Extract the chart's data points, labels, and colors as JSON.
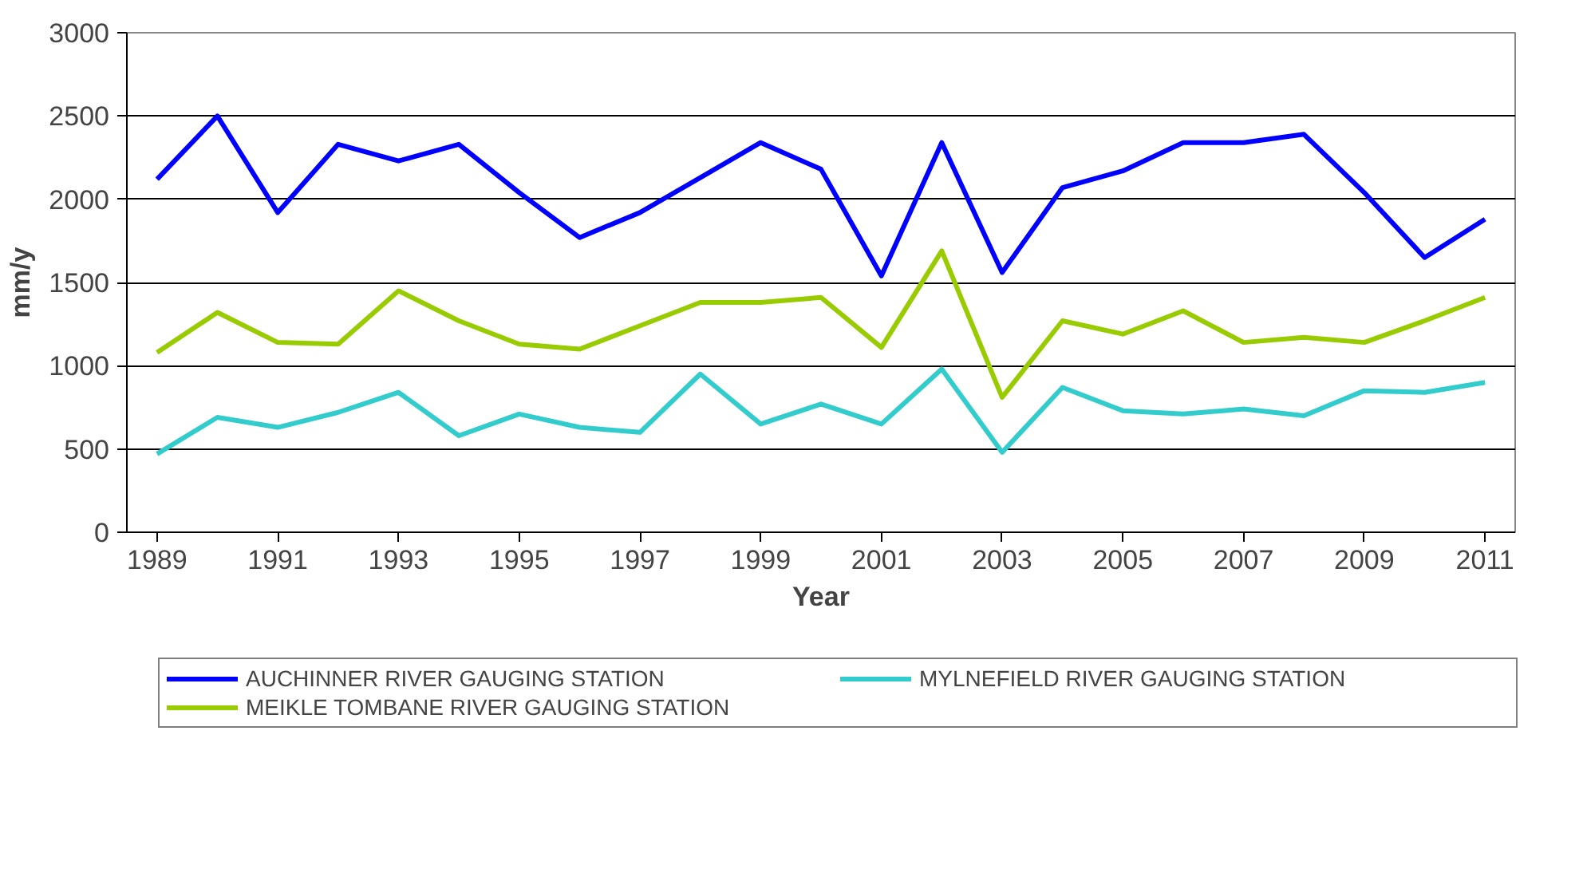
{
  "chart_data": {
    "type": "line",
    "xlabel": "Year",
    "ylabel": "mm/y",
    "x": [
      1989,
      1990,
      1991,
      1992,
      1993,
      1994,
      1995,
      1996,
      1997,
      1998,
      1999,
      2000,
      2001,
      2002,
      2003,
      2004,
      2005,
      2006,
      2007,
      2008,
      2009,
      2010,
      2011
    ],
    "xlim": [
      1988.5,
      2011.5
    ],
    "xticks": [
      1989,
      1991,
      1993,
      1995,
      1997,
      1999,
      2001,
      2003,
      2005,
      2007,
      2009,
      2011
    ],
    "ylim": [
      0,
      3000
    ],
    "yticks": [
      0,
      500,
      1000,
      1500,
      2000,
      2500,
      3000
    ],
    "grid": "y",
    "legend": "bottom",
    "series": [
      {
        "name": "AUCHINNER RIVER GAUGING STATION",
        "color": "#0000ff",
        "values": [
          2120,
          2500,
          1920,
          2330,
          2230,
          2330,
          2040,
          1770,
          1920,
          2130,
          2340,
          2180,
          1540,
          2340,
          1560,
          2070,
          2170,
          2340,
          2340,
          2390,
          2040,
          1650,
          1880
        ]
      },
      {
        "name": "MEIKLE TOMBANE RIVER GAUGING STATION",
        "color": "#99cc00",
        "values": [
          1080,
          1320,
          1140,
          1130,
          1450,
          1270,
          1130,
          1100,
          1240,
          1380,
          1380,
          1410,
          1110,
          1690,
          810,
          1270,
          1190,
          1330,
          1140,
          1170,
          1140,
          1270,
          1410
        ]
      },
      {
        "name": "MYLNEFIELD RIVER GAUGING STATION",
        "color": "#33cccc",
        "values": [
          470,
          690,
          630,
          720,
          840,
          580,
          710,
          630,
          600,
          950,
          650,
          770,
          650,
          980,
          480,
          870,
          730,
          710,
          740,
          700,
          850,
          840,
          900
        ]
      }
    ]
  }
}
